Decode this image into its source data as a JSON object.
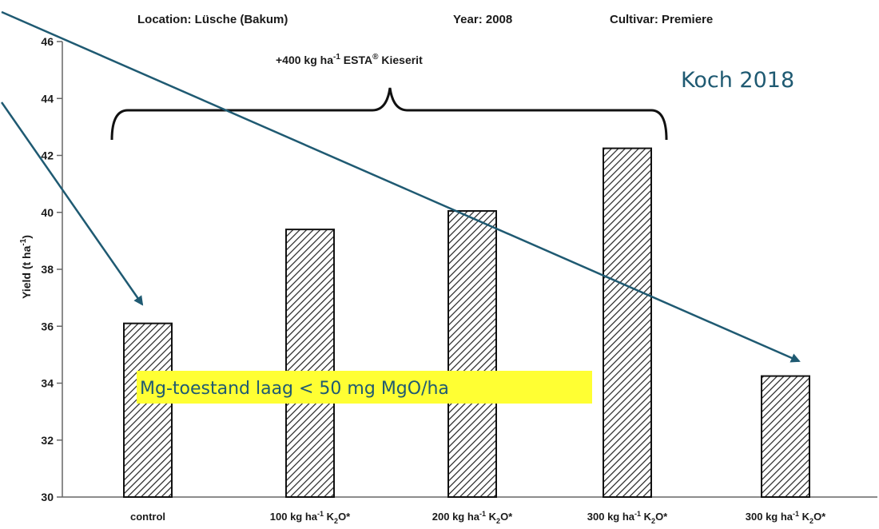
{
  "header": {
    "location": "Location: Lüsche (Bakum)",
    "year": "Year: 2008",
    "cultivar": "Cultivar: Premiere"
  },
  "brace_label": {
    "prefix": "+400 kg ha",
    "sup": "-1",
    "suffix": " ESTA",
    "reg": "®",
    "tail": " Kieserit"
  },
  "source_label": "Koch 2018",
  "highlight_note": "Mg-toestand laag < 50 mg MgO/ha",
  "colors": {
    "bar_edge": "#111111",
    "hatch": "#222222",
    "arrow": "#1f5a72",
    "highlight": "#ffff33"
  },
  "chart_data": {
    "type": "bar",
    "categories": [
      {
        "prefix": "control",
        "sup": "",
        "mid": "",
        "sub": "",
        "tail": ""
      },
      {
        "prefix": "100 kg ha",
        "sup": "-1",
        "mid": " K",
        "sub": "2",
        "tail": "O*"
      },
      {
        "prefix": "200 kg ha",
        "sup": "-1",
        "mid": " K",
        "sub": "2",
        "tail": "O*"
      },
      {
        "prefix": "300 kg ha",
        "sup": "-1",
        "mid": " K",
        "sub": "2",
        "tail": "O*"
      },
      {
        "prefix": "300 kg ha",
        "sup": "-1",
        "mid": " K",
        "sub": "2",
        "tail": "O*"
      }
    ],
    "values": [
      36.1,
      39.4,
      40.05,
      42.25,
      34.25
    ],
    "ylabel": {
      "prefix": "Yield (t ha",
      "sup": "-1",
      "suffix": ")"
    },
    "yticks": [
      30,
      32,
      34,
      36,
      38,
      40,
      42,
      44,
      46
    ],
    "ylim": [
      30,
      46
    ],
    "grid": false
  }
}
